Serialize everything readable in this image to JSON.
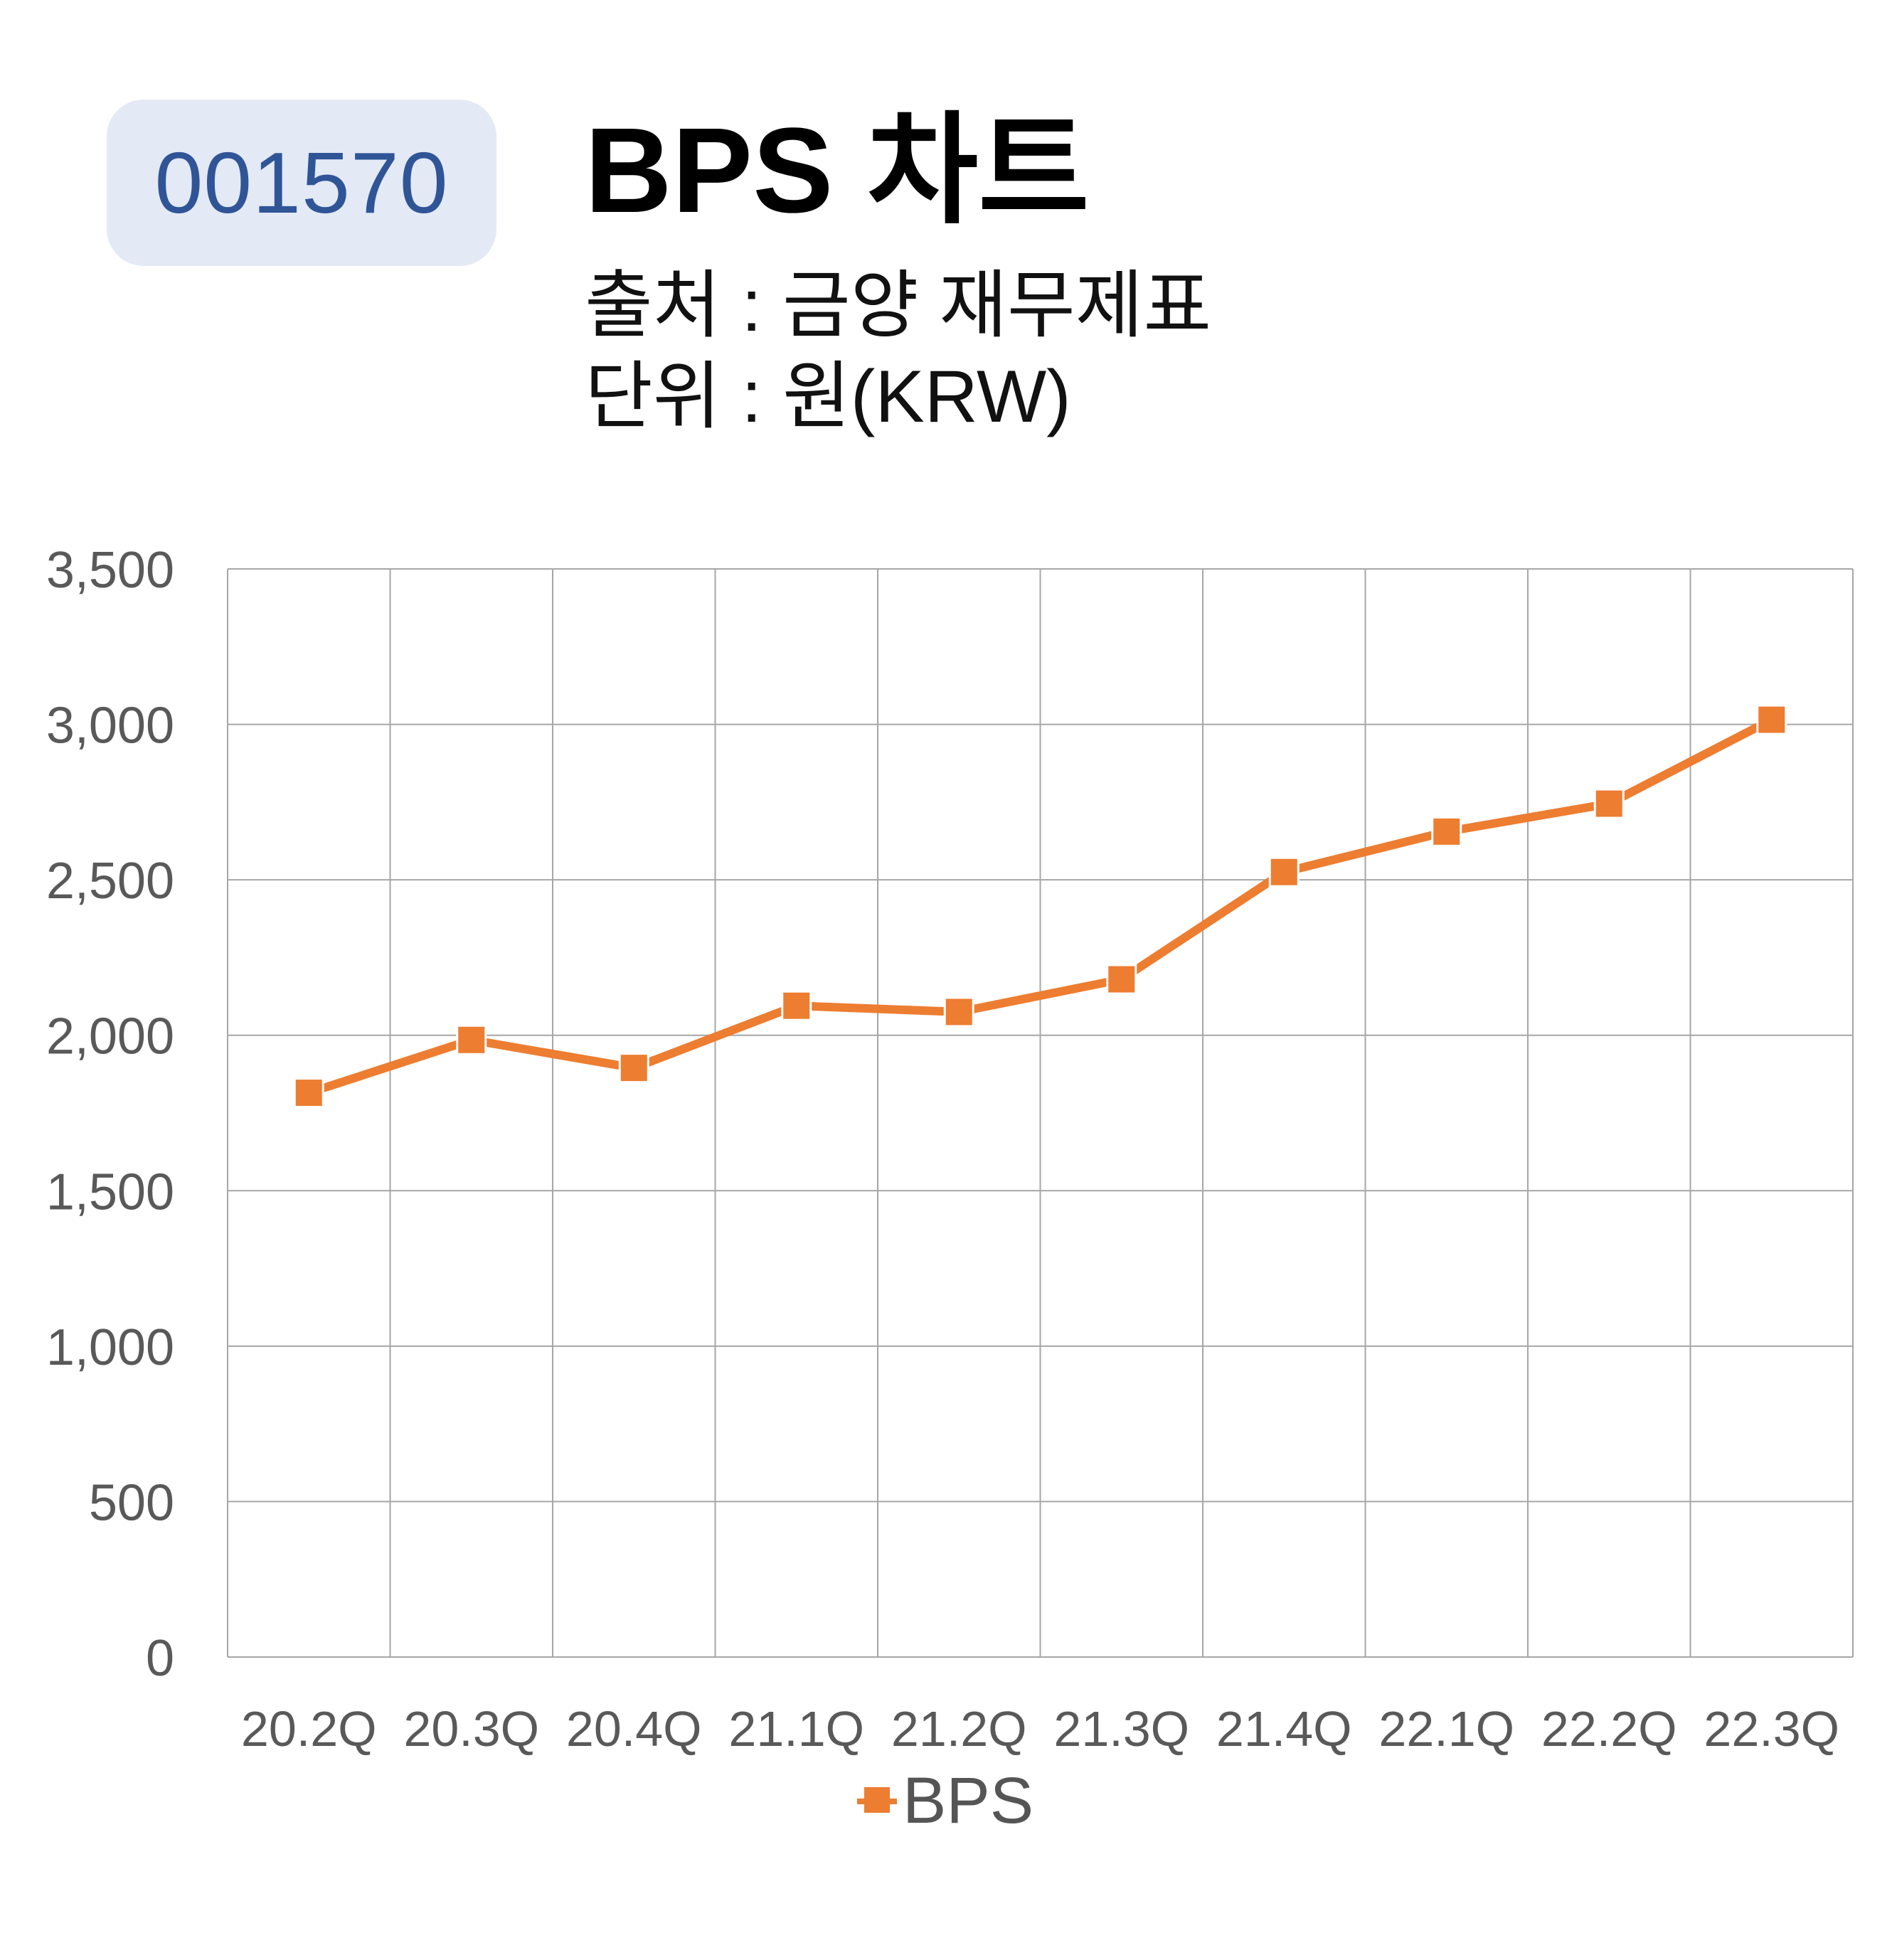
{
  "header": {
    "code": "001570",
    "title": "BPS 차트",
    "source": "출처 : 금양 재무제표",
    "unit": "단위 : 원(KRW)"
  },
  "colors": {
    "series": "#ed7d31",
    "badge_bg": "#e3e9f5",
    "badge_text": "#2f5597",
    "grid": "#a6a6a6",
    "tick_text": "#595959"
  },
  "chart_data": {
    "type": "line",
    "categories": [
      "20.2Q",
      "20.3Q",
      "20.4Q",
      "21.1Q",
      "21.2Q",
      "21.3Q",
      "21.4Q",
      "22.1Q",
      "22.2Q",
      "22.3Q"
    ],
    "series": [
      {
        "name": "BPS",
        "values": [
          1815,
          1985,
          1895,
          2095,
          2075,
          2180,
          2525,
          2655,
          2745,
          3015
        ]
      }
    ],
    "ylim": [
      0,
      3500
    ],
    "yticks": [
      0,
      500,
      1000,
      1500,
      2000,
      2500,
      3000,
      3500
    ],
    "ytick_labels": [
      "0",
      "500",
      "1,000",
      "1,500",
      "2,000",
      "2,500",
      "3,000",
      "3,500"
    ],
    "grid": true,
    "legend": "bottom",
    "marker": "square"
  }
}
